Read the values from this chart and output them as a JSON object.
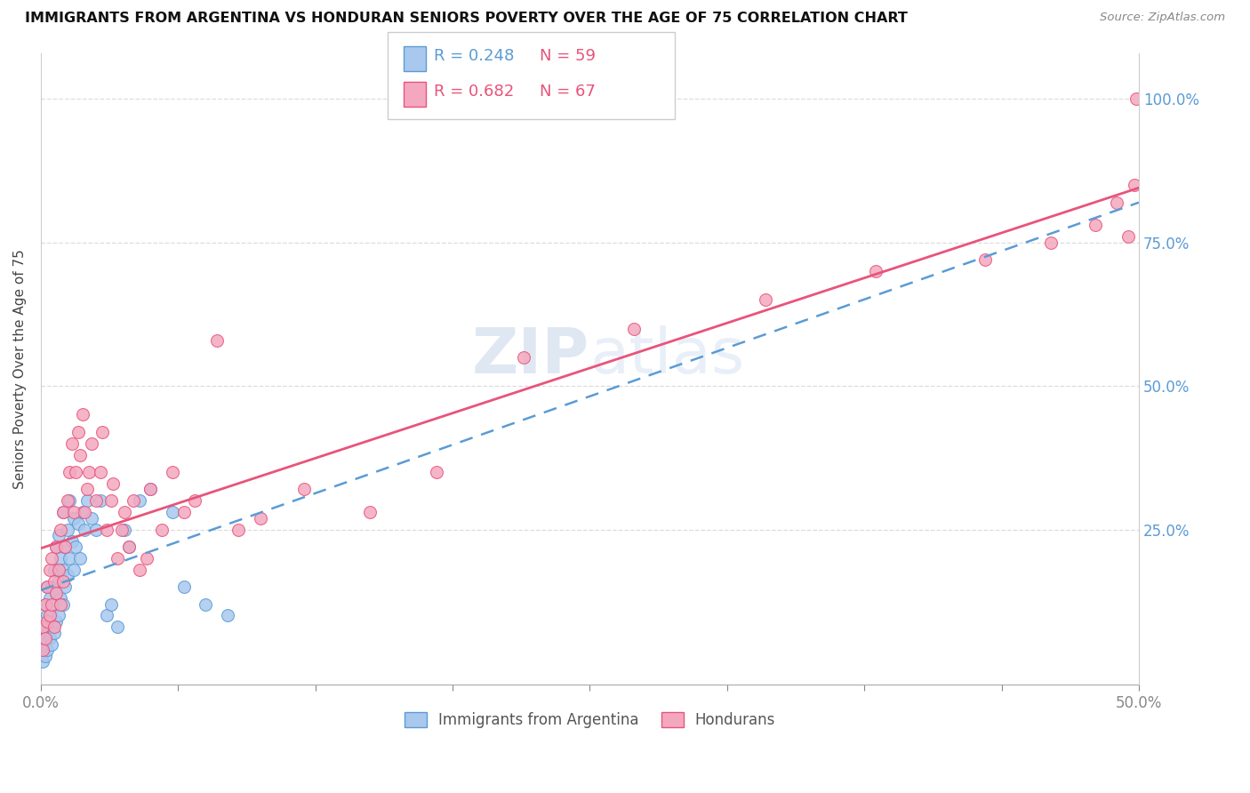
{
  "title": "IMMIGRANTS FROM ARGENTINA VS HONDURAN SENIORS POVERTY OVER THE AGE OF 75 CORRELATION CHART",
  "source": "Source: ZipAtlas.com",
  "ylabel": "Seniors Poverty Over the Age of 75",
  "legend_labels": [
    "Immigrants from Argentina",
    "Hondurans"
  ],
  "r_argentina": 0.248,
  "n_argentina": 59,
  "r_hondurans": 0.682,
  "n_hondurans": 67,
  "xlim": [
    0.0,
    0.5
  ],
  "ylim": [
    -0.02,
    1.08
  ],
  "ytick_vals": [
    0.25,
    0.5,
    0.75,
    1.0
  ],
  "ytick_labels": [
    "25.0%",
    "50.0%",
    "75.0%",
    "100.0%"
  ],
  "color_argentina": "#A8C8EE",
  "color_hondurans": "#F4A8C0",
  "color_argentina_dark": "#5B9BD5",
  "color_hondurans_dark": "#E8547A",
  "watermark_color": "#C5D8F0",
  "argentina_x": [
    0.001,
    0.001,
    0.002,
    0.002,
    0.002,
    0.003,
    0.003,
    0.003,
    0.003,
    0.004,
    0.004,
    0.004,
    0.005,
    0.005,
    0.005,
    0.005,
    0.006,
    0.006,
    0.006,
    0.007,
    0.007,
    0.007,
    0.008,
    0.008,
    0.008,
    0.009,
    0.009,
    0.01,
    0.01,
    0.01,
    0.011,
    0.011,
    0.012,
    0.012,
    0.013,
    0.013,
    0.014,
    0.015,
    0.015,
    0.016,
    0.017,
    0.018,
    0.019,
    0.02,
    0.021,
    0.023,
    0.025,
    0.027,
    0.03,
    0.032,
    0.035,
    0.038,
    0.04,
    0.045,
    0.05,
    0.06,
    0.065,
    0.075,
    0.085
  ],
  "argentina_y": [
    0.02,
    0.05,
    0.03,
    0.08,
    0.12,
    0.04,
    0.07,
    0.1,
    0.15,
    0.06,
    0.09,
    0.13,
    0.05,
    0.08,
    0.11,
    0.15,
    0.07,
    0.12,
    0.18,
    0.09,
    0.14,
    0.22,
    0.1,
    0.16,
    0.24,
    0.13,
    0.2,
    0.12,
    0.18,
    0.28,
    0.15,
    0.22,
    0.17,
    0.25,
    0.2,
    0.3,
    0.23,
    0.18,
    0.27,
    0.22,
    0.26,
    0.2,
    0.28,
    0.25,
    0.3,
    0.27,
    0.25,
    0.3,
    0.1,
    0.12,
    0.08,
    0.25,
    0.22,
    0.3,
    0.32,
    0.28,
    0.15,
    0.12,
    0.1
  ],
  "hondurans_x": [
    0.001,
    0.001,
    0.002,
    0.002,
    0.003,
    0.003,
    0.004,
    0.004,
    0.005,
    0.005,
    0.006,
    0.006,
    0.007,
    0.007,
    0.008,
    0.009,
    0.009,
    0.01,
    0.01,
    0.011,
    0.012,
    0.013,
    0.014,
    0.015,
    0.016,
    0.017,
    0.018,
    0.019,
    0.02,
    0.021,
    0.022,
    0.023,
    0.025,
    0.027,
    0.028,
    0.03,
    0.032,
    0.033,
    0.035,
    0.037,
    0.038,
    0.04,
    0.042,
    0.045,
    0.048,
    0.05,
    0.055,
    0.06,
    0.065,
    0.07,
    0.08,
    0.09,
    0.1,
    0.12,
    0.15,
    0.18,
    0.22,
    0.27,
    0.33,
    0.38,
    0.43,
    0.46,
    0.48,
    0.49,
    0.495,
    0.498,
    0.499
  ],
  "hondurans_y": [
    0.04,
    0.08,
    0.06,
    0.12,
    0.09,
    0.15,
    0.1,
    0.18,
    0.12,
    0.2,
    0.08,
    0.16,
    0.14,
    0.22,
    0.18,
    0.12,
    0.25,
    0.16,
    0.28,
    0.22,
    0.3,
    0.35,
    0.4,
    0.28,
    0.35,
    0.42,
    0.38,
    0.45,
    0.28,
    0.32,
    0.35,
    0.4,
    0.3,
    0.35,
    0.42,
    0.25,
    0.3,
    0.33,
    0.2,
    0.25,
    0.28,
    0.22,
    0.3,
    0.18,
    0.2,
    0.32,
    0.25,
    0.35,
    0.28,
    0.3,
    0.58,
    0.25,
    0.27,
    0.32,
    0.28,
    0.35,
    0.55,
    0.6,
    0.65,
    0.7,
    0.72,
    0.75,
    0.78,
    0.82,
    0.76,
    0.85,
    1.0
  ]
}
